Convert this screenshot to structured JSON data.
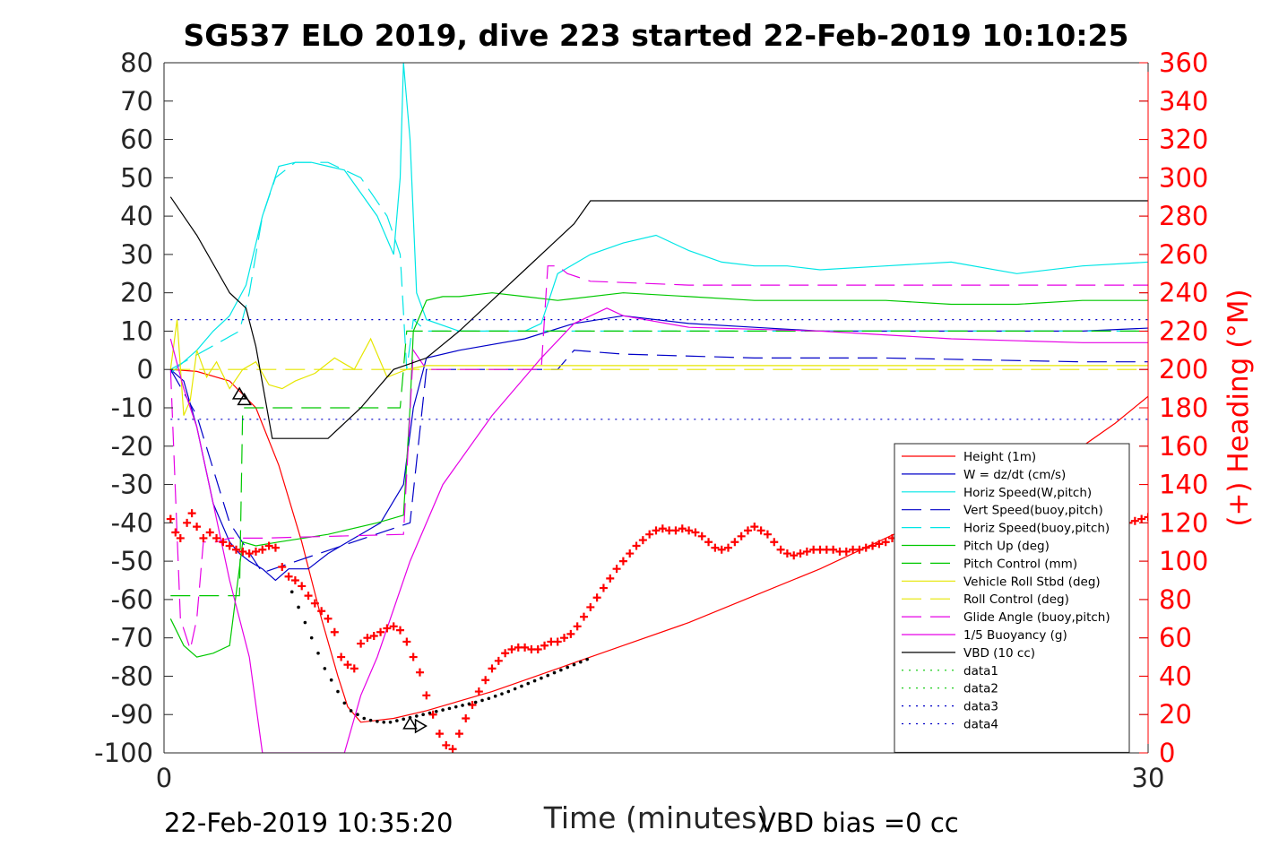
{
  "chart_data": {
    "type": "line",
    "title": "SG537 ELO 2019, dive 223 started 22-Feb-2019 10:10:25",
    "xlabel": "Time (minutes)",
    "ylabel_left": "",
    "ylabel_right": "(+) Heading (°M)",
    "xlim": [
      0,
      30
    ],
    "ylim_left": [
      -100,
      80
    ],
    "ylim_right": [
      0,
      360
    ],
    "x_ticks": [
      "0",
      "30"
    ],
    "y_ticks_left": [
      "80",
      "70",
      "60",
      "50",
      "40",
      "30",
      "20",
      "10",
      "0",
      "-10",
      "-20",
      "-30",
      "-40",
      "-50",
      "-60",
      "-70",
      "-80",
      "-90",
      "-100"
    ],
    "y_ticks_right": [
      "360",
      "340",
      "320",
      "300",
      "280",
      "260",
      "240",
      "220",
      "200",
      "180",
      "160",
      "140",
      "120",
      "100",
      "80",
      "60",
      "40",
      "20",
      "0"
    ],
    "grid": false,
    "legend_position": "lower-right",
    "footer_left": "22-Feb-2019 10:35:20",
    "footer_right": "VBD bias =0 cc",
    "series": [
      {
        "name": "Height (1m)",
        "color": "#ff0000",
        "style": "solid",
        "x": [
          0.2,
          1.0,
          2.0,
          2.8,
          3.5,
          4.2,
          4.8,
          5.3,
          5.6,
          6.0,
          7.0,
          8.0,
          10,
          12,
          14,
          16,
          18,
          20,
          22,
          24,
          26,
          28,
          29,
          30.0,
          30.9
        ],
        "y": [
          0,
          -0.5,
          -3,
          -10,
          -25,
          -45,
          -65,
          -80,
          -88,
          -92,
          -91,
          -89,
          -84,
          -78,
          -72,
          -66,
          -59,
          -52,
          -44,
          -36,
          -28,
          -20,
          -14,
          -7,
          0
        ]
      },
      {
        "name": "W = dz/dt (cm/s)",
        "color": "#0000c8",
        "style": "solid",
        "x": [
          0.2,
          0.6,
          1.0,
          1.5,
          2.0,
          2.3,
          2.6,
          3.0,
          3.4,
          3.8,
          4.4,
          5.0,
          5.8,
          6.6,
          7.3,
          7.6,
          8.0,
          9,
          11,
          12.5,
          14,
          16,
          18,
          20,
          24,
          28,
          30.5,
          30.9
        ],
        "y": [
          0,
          -3,
          -15,
          -35,
          -45,
          -48,
          -50,
          -52,
          -55,
          -52,
          -52,
          -48,
          -44,
          -40,
          -30,
          -10,
          3,
          5,
          8,
          12,
          14,
          12,
          11,
          10,
          10,
          10,
          11,
          0
        ]
      },
      {
        "name": "Horiz Speed(W,pitch)",
        "color": "#00e6e6",
        "style": "solid",
        "x": [
          0.2,
          0.6,
          1.0,
          1.5,
          2.0,
          2.5,
          3.0,
          3.5,
          4.0,
          4.5,
          5.0,
          5.5,
          6.0,
          6.5,
          7.0,
          7.2,
          7.3,
          7.35,
          7.5,
          7.7,
          8,
          9,
          11,
          11.5,
          12,
          13,
          14,
          15,
          16,
          17,
          18,
          19,
          20,
          22,
          24,
          26,
          28,
          30,
          30.6,
          30.9
        ],
        "y": [
          -1,
          2,
          5,
          10,
          14,
          22,
          40,
          53,
          54,
          54,
          53,
          52,
          46,
          40,
          30,
          50,
          80,
          75,
          60,
          20,
          13,
          10,
          10,
          12,
          25,
          30,
          33,
          35,
          31,
          28,
          27,
          27,
          26,
          27,
          28,
          25,
          27,
          28,
          33,
          14
        ]
      },
      {
        "name": "Vert Speed(buoy,pitch)",
        "color": "#0000c8",
        "style": "dash",
        "x": [
          0.2,
          1.0,
          2.0,
          3.0,
          7.5,
          8,
          12,
          12.5,
          14,
          18,
          22,
          28,
          30.9
        ],
        "y": [
          0,
          -12,
          -40,
          -53,
          -40,
          0,
          0,
          5,
          4,
          3,
          3,
          2,
          2
        ]
      },
      {
        "name": "Horiz Speed(buoy,pitch)",
        "color": "#00e6e6",
        "style": "dash",
        "x": [
          0.2,
          2.3,
          2.6,
          3.0,
          3.4,
          4.0,
          5.0,
          6.0,
          6.8,
          7.2,
          7.4,
          7.6,
          8,
          12,
          14,
          20,
          26,
          30.9
        ],
        "y": [
          0,
          10,
          20,
          40,
          50,
          54,
          54,
          50,
          40,
          30,
          0,
          13,
          10,
          10,
          10,
          10,
          10,
          10
        ]
      },
      {
        "name": "Pitch Up (deg)",
        "color": "#00c800",
        "style": "solid",
        "x": [
          0.2,
          0.6,
          1.0,
          1.5,
          2.0,
          2.4,
          2.8,
          3.5,
          5.0,
          6.5,
          7.3,
          7.5,
          7.6,
          8.0,
          8.5,
          9,
          10,
          11,
          12,
          14,
          16,
          18,
          20,
          22,
          24,
          26,
          28,
          30,
          30.6,
          30.9
        ],
        "y": [
          -65,
          -72,
          -75,
          -74,
          -72,
          -45,
          -46,
          -45,
          -43,
          -40,
          -38,
          -10,
          10,
          18,
          19,
          19,
          20,
          19,
          18,
          20,
          19,
          18,
          18,
          18,
          17,
          17,
          18,
          18,
          19,
          -10
        ]
      },
      {
        "name": "Pitch Control (mm)",
        "color": "#00c800",
        "style": "dash",
        "x": [
          0.2,
          2.3,
          2.4,
          7.2,
          7.4,
          30.8,
          30.9
        ],
        "y": [
          -59,
          -59,
          -10,
          -10,
          10,
          10,
          10
        ]
      },
      {
        "name": "Vehicle Roll Stbd (deg)",
        "color": "#e6e600",
        "style": "solid",
        "x": [
          0.2,
          0.4,
          0.6,
          0.8,
          1.0,
          1.3,
          1.6,
          2.0,
          2.4,
          2.8,
          3.2,
          3.6,
          4.0,
          4.6,
          5.2,
          5.8,
          6.3,
          6.8,
          7.1,
          7.4,
          8,
          10,
          14,
          18,
          22,
          26,
          30.9
        ],
        "y": [
          0,
          13,
          -12,
          -8,
          5,
          -2,
          2,
          -5,
          0,
          2,
          -4,
          -5,
          -3,
          -1,
          3,
          0,
          8,
          -2,
          -1,
          0,
          1,
          1,
          1,
          1,
          1,
          1,
          1
        ]
      },
      {
        "name": "Roll Control (deg)",
        "color": "#e6e600",
        "style": "dash",
        "x": [
          0.2,
          30.9
        ],
        "y": [
          0,
          0
        ]
      },
      {
        "name": "Glide Angle (buoy,pitch)",
        "color": "#e600e6",
        "style": "dash",
        "x": [
          0.2,
          0.5,
          0.8,
          1.0,
          1.2,
          1.6,
          2.0,
          2.4,
          3.0,
          7.3,
          7.6,
          8,
          11.5,
          11.7,
          12,
          12.3,
          13,
          16,
          20,
          24,
          28,
          30.9
        ],
        "y": [
          0,
          -65,
          -73,
          -65,
          -45,
          -45,
          -44,
          -44,
          -44,
          -43,
          5,
          0,
          0,
          27,
          27,
          25,
          23,
          22,
          22,
          22,
          22,
          22
        ]
      },
      {
        "name": "1/5 Buoyancy (g)",
        "color": "#e600e6",
        "style": "solid",
        "x": [
          0.2,
          0.6,
          1.0,
          1.5,
          2.0,
          2.6,
          3.0,
          5.5,
          6.0,
          6.5,
          7.5,
          8.5,
          10,
          11.5,
          12.5,
          13.5,
          14,
          16,
          20,
          24,
          28,
          30.6,
          30.9
        ],
        "y": [
          8,
          -5,
          -15,
          -35,
          -55,
          -75,
          -100,
          -100,
          -85,
          -75,
          -50,
          -30,
          -12,
          3,
          12,
          16,
          14,
          11,
          10,
          8,
          7,
          7,
          5
        ]
      },
      {
        "name": "VBD (10 cc)",
        "color": "#000000",
        "style": "solid",
        "x": [
          0.2,
          1.0,
          2.0,
          2.5,
          2.8,
          3.3,
          4.0,
          5.0,
          6.0,
          7.0,
          8.0,
          9.0,
          10,
          11,
          12,
          12.5,
          13,
          14,
          20,
          25,
          30.9
        ],
        "y": [
          45,
          35,
          20,
          16,
          6,
          -18,
          -18,
          -18,
          -10,
          0,
          3,
          10,
          18,
          26,
          34,
          38,
          44,
          44,
          44,
          44,
          44
        ]
      },
      {
        "name": "data1",
        "color": "#00c800",
        "style": "dot",
        "x": [],
        "y": []
      },
      {
        "name": "data2",
        "color": "#00c800",
        "style": "dot",
        "x": [],
        "y": []
      },
      {
        "name": "data3",
        "color": "#0000c8",
        "style": "dot",
        "x": [
          0.2,
          30.9
        ],
        "y": [
          13,
          13
        ]
      },
      {
        "name": "data4",
        "color": "#0000c8",
        "style": "dot",
        "x": [
          0.2,
          30.9
        ],
        "y": [
          -13,
          -13
        ]
      }
    ],
    "heading_markers": {
      "color": "#ff0000",
      "axis": "right",
      "x": [
        0.2,
        0.35,
        0.5,
        0.7,
        0.85,
        1.0,
        1.2,
        1.4,
        1.6,
        1.8,
        2.0,
        2.2,
        2.4,
        2.6,
        2.8,
        3.0,
        3.2,
        3.4,
        3.6,
        3.8,
        4.0,
        4.2,
        4.4,
        4.6,
        4.8,
        5.0,
        5.2,
        5.4,
        5.6,
        5.8,
        6.0,
        6.2,
        6.4,
        6.6,
        6.8,
        7.0,
        7.2,
        7.4,
        7.6,
        7.8,
        8.0,
        8.2,
        8.4,
        8.6,
        8.8,
        9.0,
        9.2,
        9.4,
        9.6,
        9.8,
        10.0,
        10.2,
        10.4,
        10.6,
        10.8,
        11.0,
        11.2,
        11.4,
        11.6,
        11.8,
        12.0,
        12.2,
        12.4,
        12.6,
        12.8,
        13.0,
        13.2,
        13.4,
        13.6,
        13.8,
        14.0,
        14.2,
        14.4,
        14.6,
        14.8,
        15.0,
        15.2,
        15.4,
        15.6,
        15.8,
        16.0,
        16.2,
        16.4,
        16.6,
        16.8,
        17.0,
        17.2,
        17.4,
        17.6,
        17.8,
        18.0,
        18.2,
        18.4,
        18.6,
        18.8,
        19.0,
        19.2,
        19.4,
        19.6,
        19.8,
        20.0,
        20.2,
        20.4,
        20.6,
        20.8,
        21.0,
        21.2,
        21.4,
        21.6,
        21.8,
        22.0,
        22.2,
        22.4,
        22.6,
        22.8,
        23.0,
        23.2,
        23.4,
        23.6,
        23.8,
        24.0,
        24.2,
        24.4,
        24.6,
        24.8,
        25.0,
        25.2,
        25.4,
        25.6,
        25.8,
        26.0,
        26.2,
        26.4,
        26.6,
        26.8,
        27.0,
        27.2,
        27.4,
        27.6,
        27.8,
        28.0,
        28.2,
        28.4,
        28.6,
        28.8,
        29.0,
        29.2,
        29.4,
        29.6,
        29.8,
        30.0,
        30.2,
        30.4,
        30.6,
        30.8
      ],
      "y": [
        122,
        115,
        112,
        120,
        125,
        118,
        112,
        115,
        112,
        110,
        108,
        106,
        105,
        104,
        105,
        106,
        108,
        107,
        97,
        92,
        90,
        87,
        82,
        78,
        74,
        70,
        63,
        50,
        46,
        44,
        57,
        60,
        61,
        63,
        65,
        66,
        64,
        58,
        50,
        42,
        30,
        20,
        10,
        4,
        2,
        10,
        18,
        25,
        32,
        38,
        44,
        48,
        52,
        54,
        55,
        55,
        54,
        54,
        56,
        58,
        58,
        60,
        62,
        66,
        71,
        76,
        81,
        86,
        91,
        96,
        100,
        104,
        108,
        111,
        114,
        116,
        117,
        116,
        116,
        117,
        116,
        115,
        113,
        110,
        107,
        106,
        107,
        110,
        113,
        116,
        118,
        116,
        114,
        110,
        106,
        104,
        103,
        104,
        105,
        106,
        106,
        106,
        106,
        105,
        105,
        106,
        106,
        107,
        108,
        109,
        110,
        112,
        114,
        116,
        118,
        120,
        122,
        123,
        124,
        125,
        125,
        124,
        124,
        123,
        122,
        121,
        122,
        120,
        120,
        121,
        122,
        123,
        124,
        125,
        125,
        126,
        127,
        128,
        129,
        128,
        127,
        126,
        124,
        123,
        122,
        121,
        121,
        120,
        121,
        122,
        123,
        124,
        125,
        126,
        125
      ]
    },
    "height_dots": {
      "color": "#000000",
      "x": [
        3.9,
        4.1,
        4.3,
        4.5,
        4.7,
        4.9,
        5.1,
        5.3,
        5.5,
        5.7,
        5.9,
        6.1,
        6.3,
        6.5,
        6.7,
        6.9,
        7.1,
        7.3,
        7.5,
        7.7,
        7.9,
        8.1,
        8.3,
        8.5,
        8.7,
        8.9,
        9.1,
        9.3,
        9.5,
        9.7,
        9.9,
        10.1,
        10.3,
        10.5,
        10.7,
        10.9,
        11.1,
        11.3,
        11.5,
        11.7,
        11.9,
        12.1,
        12.3,
        12.5,
        12.7,
        12.9
      ],
      "y": [
        -58,
        -62,
        -66,
        -70,
        -74,
        -78,
        -81,
        -84,
        -87,
        -89,
        -90,
        -91,
        -91.5,
        -91.8,
        -92,
        -92,
        -91.6,
        -91.2,
        -90.8,
        -90.4,
        -90,
        -89.6,
        -89.2,
        -88.8,
        -88.4,
        -88,
        -87.6,
        -87.2,
        -86.8,
        -86.3,
        -85.8,
        -85.2,
        -84.6,
        -84,
        -83.3,
        -82.6,
        -81.9,
        -81.2,
        -80.5,
        -79.8,
        -79.1,
        -78.4,
        -77.7,
        -77,
        -76.3,
        -75.6
      ]
    },
    "triangle_markers": [
      {
        "x": 2.3,
        "y": -6.5,
        "dir": "up"
      },
      {
        "x": 2.45,
        "y": -8,
        "dir": "up"
      },
      {
        "x": 7.5,
        "y": -92.5,
        "dir": "up"
      },
      {
        "x": 7.8,
        "y": -93,
        "dir": "right"
      },
      {
        "x": 30.9,
        "y": 0,
        "dir": "left"
      }
    ]
  }
}
